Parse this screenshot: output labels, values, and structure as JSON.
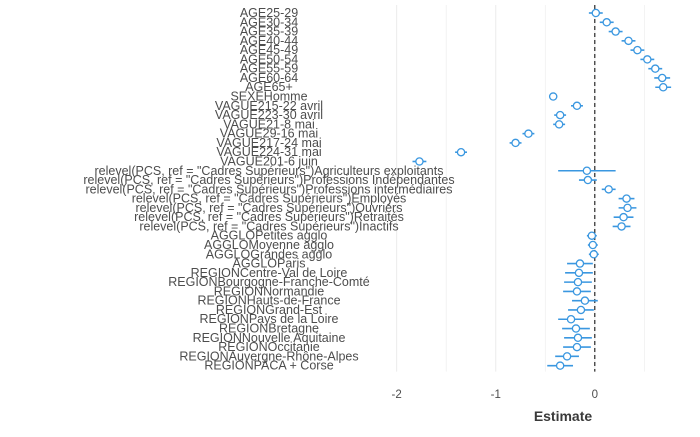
{
  "chart_data": {
    "type": "scatter",
    "xlabel": "Estimate",
    "xlim": [
      -2.4,
      0.9
    ],
    "x_ticks": [
      -2,
      -1,
      0
    ],
    "x_tick_labels": [
      "-2",
      "-1",
      "0"
    ],
    "reference_line_x": 0,
    "grid": "vertical",
    "point_color": "#3a97e0",
    "line_color": "#3a97e0",
    "reference_color": "#000000",
    "grid_color": "#ebebeb",
    "terms": [
      {
        "label": "AGE25-29",
        "estimate": 0.01,
        "lower": -0.06,
        "upper": 0.08
      },
      {
        "label": "AGE30-34",
        "estimate": 0.12,
        "lower": 0.05,
        "upper": 0.19
      },
      {
        "label": "AGE35-39",
        "estimate": 0.21,
        "lower": 0.14,
        "upper": 0.28
      },
      {
        "label": "AGE40-44",
        "estimate": 0.34,
        "lower": 0.27,
        "upper": 0.41
      },
      {
        "label": "AGE45-49",
        "estimate": 0.43,
        "lower": 0.36,
        "upper": 0.5
      },
      {
        "label": "AGE50-54",
        "estimate": 0.53,
        "lower": 0.46,
        "upper": 0.6
      },
      {
        "label": "AGE55-59",
        "estimate": 0.61,
        "lower": 0.54,
        "upper": 0.68
      },
      {
        "label": "AGE60-64",
        "estimate": 0.68,
        "lower": 0.6,
        "upper": 0.76
      },
      {
        "label": "AGE65+",
        "estimate": 0.69,
        "lower": 0.61,
        "upper": 0.77
      },
      {
        "label": "SEXEHomme",
        "estimate": -0.42,
        "lower": -0.46,
        "upper": -0.38
      },
      {
        "label": "VAGUE215-22 avril",
        "estimate": -0.18,
        "lower": -0.24,
        "upper": -0.12
      },
      {
        "label": "VAGUE223-30 avril",
        "estimate": -0.35,
        "lower": -0.41,
        "upper": -0.29
      },
      {
        "label": "VAGUE21-8 mai",
        "estimate": -0.36,
        "lower": -0.42,
        "upper": -0.3
      },
      {
        "label": "VAGUE29-16 mai",
        "estimate": -0.67,
        "lower": -0.73,
        "upper": -0.61
      },
      {
        "label": "VAGUE217-24 mai",
        "estimate": -0.8,
        "lower": -0.86,
        "upper": -0.74
      },
      {
        "label": "VAGUE224-31 mai",
        "estimate": -1.35,
        "lower": -1.41,
        "upper": -1.29
      },
      {
        "label": "VAGUE201-6 juin",
        "estimate": -1.77,
        "lower": -1.84,
        "upper": -1.7
      },
      {
        "label": "relevel(PCS, ref = \"Cadres Supérieurs\")Agriculteurs exploitants",
        "estimate": -0.08,
        "lower": -0.37,
        "upper": 0.21
      },
      {
        "label": "relevel(PCS, ref = \"Cadres Supérieurs\")Professions Indépendantes",
        "estimate": -0.07,
        "lower": -0.16,
        "upper": 0.02
      },
      {
        "label": "relevel(PCS, ref = \"Cadres Supérieurs\")Professions intermédiaires",
        "estimate": 0.14,
        "lower": 0.07,
        "upper": 0.21
      },
      {
        "label": "relevel(PCS, ref = \"Cadres Supérieurs\")Employés",
        "estimate": 0.32,
        "lower": 0.24,
        "upper": 0.4
      },
      {
        "label": "relevel(PCS, ref = \"Cadres Supérieurs\")Ouvriers",
        "estimate": 0.33,
        "lower": 0.24,
        "upper": 0.42
      },
      {
        "label": "relevel(PCS, ref = \"Cadres Supérieurs\")Retraités",
        "estimate": 0.29,
        "lower": 0.19,
        "upper": 0.39
      },
      {
        "label": "relevel(PCS, ref = \"Cadres Supérieurs\")Inactifs",
        "estimate": 0.27,
        "lower": 0.18,
        "upper": 0.36
      },
      {
        "label": "AGGLOPetites agglo",
        "estimate": -0.03,
        "lower": -0.08,
        "upper": 0.02
      },
      {
        "label": "AGGLOMoyenne agglo",
        "estimate": -0.02,
        "lower": -0.07,
        "upper": 0.03
      },
      {
        "label": "AGGLOGrandes agglo",
        "estimate": -0.01,
        "lower": -0.06,
        "upper": 0.04
      },
      {
        "label": "AGGLOParis",
        "estimate": -0.15,
        "lower": -0.28,
        "upper": -0.02
      },
      {
        "label": "REGIONCentre-Val de Loire",
        "estimate": -0.16,
        "lower": -0.3,
        "upper": -0.02
      },
      {
        "label": "REGIONBourgogne-Franche-Comté",
        "estimate": -0.17,
        "lower": -0.31,
        "upper": -0.03
      },
      {
        "label": "REGIONNormandie",
        "estimate": -0.18,
        "lower": -0.32,
        "upper": -0.04
      },
      {
        "label": "REGIONHauts-de-France",
        "estimate": -0.1,
        "lower": -0.23,
        "upper": 0.03
      },
      {
        "label": "REGIONGrand-Est",
        "estimate": -0.14,
        "lower": -0.27,
        "upper": -0.01
      },
      {
        "label": "REGIONPays de la Loire",
        "estimate": -0.24,
        "lower": -0.37,
        "upper": -0.11
      },
      {
        "label": "REGIONBretagne",
        "estimate": -0.19,
        "lower": -0.33,
        "upper": -0.05
      },
      {
        "label": "REGIONNouvelle Aquitaine",
        "estimate": -0.17,
        "lower": -0.31,
        "upper": -0.03
      },
      {
        "label": "REGIONOccitanie",
        "estimate": -0.18,
        "lower": -0.32,
        "upper": -0.04
      },
      {
        "label": "REGIONAuvergne-Rhône-Alpes",
        "estimate": -0.28,
        "lower": -0.4,
        "upper": -0.16
      },
      {
        "label": "REGIONPACA + Corse",
        "estimate": -0.35,
        "lower": -0.48,
        "upper": -0.22
      }
    ]
  }
}
